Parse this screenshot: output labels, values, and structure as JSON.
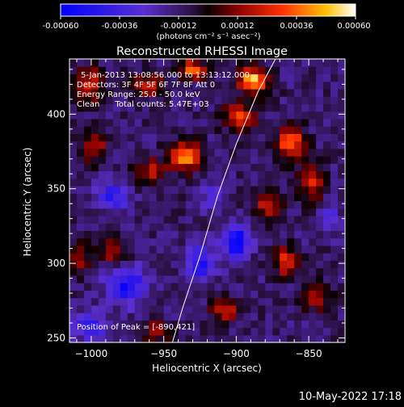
{
  "colorbar": {
    "ticks": [
      "-0.00060",
      "-0.00036",
      "-0.00012",
      "0.00012",
      "0.00036",
      "0.00060"
    ],
    "unit_text": "(photons cm⁻² s⁻¹ asec⁻²)"
  },
  "chart_data": {
    "type": "heatmap",
    "title": "Reconstructed RHESSI Image",
    "xlabel": "Heliocentric X (arcsec)",
    "ylabel": "Heliocentric Y (arcsec)",
    "xlim": [
      -1015,
      -825
    ],
    "ylim": [
      247,
      437
    ],
    "x_ticks": [
      -1000,
      -950,
      -900,
      -850
    ],
    "y_ticks": [
      250,
      300,
      350,
      400
    ],
    "color_range": [
      -0.0006,
      0.0006
    ],
    "annotations": [
      "5-Jan-2013 13:08:56.000 to 13:13:12.000",
      "Detectors: 3F 4F 5F 6F 7F 8F  Att 0",
      "Energy Range: 25.0 - 50.0 keV",
      "Clean      Total counts: 5.47E+03"
    ],
    "peak_label": "Position of Peak = [-890,421]",
    "peak": [
      -890,
      421
    ],
    "limb_arc": [
      [
        -944,
        247
      ],
      [
        -937,
        270
      ],
      [
        -925,
        305
      ],
      [
        -913,
        345
      ],
      [
        -900,
        380
      ],
      [
        -885,
        415
      ],
      [
        -873,
        437
      ]
    ],
    "regions": [
      {
        "cx": -1002,
        "cy": 420,
        "sx": 10,
        "sy": 12,
        "a": 0.00035
      },
      {
        "cx": -998,
        "cy": 378,
        "sx": 9,
        "sy": 10,
        "a": 0.0003
      },
      {
        "cx": -960,
        "cy": 420,
        "sx": 11,
        "sy": 8,
        "a": 0.00034
      },
      {
        "cx": -930,
        "cy": 430,
        "sx": 9,
        "sy": 6,
        "a": 0.0005
      },
      {
        "cx": -888,
        "cy": 423,
        "sx": 10,
        "sy": 9,
        "a": 0.0006
      },
      {
        "cx": -898,
        "cy": 398,
        "sx": 11,
        "sy": 9,
        "a": 0.00042
      },
      {
        "cx": -935,
        "cy": 372,
        "sx": 10,
        "sy": 10,
        "a": 0.00052
      },
      {
        "cx": -960,
        "cy": 362,
        "sx": 12,
        "sy": 9,
        "a": 0.0003
      },
      {
        "cx": -862,
        "cy": 380,
        "sx": 10,
        "sy": 11,
        "a": 0.00048
      },
      {
        "cx": -848,
        "cy": 355,
        "sx": 8,
        "sy": 12,
        "a": 0.00038
      },
      {
        "cx": -878,
        "cy": 338,
        "sx": 9,
        "sy": 9,
        "a": 0.00035
      },
      {
        "cx": -866,
        "cy": 302,
        "sx": 8,
        "sy": 10,
        "a": 0.0004
      },
      {
        "cx": -845,
        "cy": 278,
        "sx": 9,
        "sy": 10,
        "a": 0.0003
      },
      {
        "cx": -908,
        "cy": 268,
        "sx": 10,
        "sy": 8,
        "a": 0.00032
      },
      {
        "cx": -985,
        "cy": 310,
        "sx": 9,
        "sy": 9,
        "a": 0.0003
      },
      {
        "cx": -1008,
        "cy": 305,
        "sx": 6,
        "sy": 10,
        "a": 0.0003
      },
      {
        "cx": -955,
        "cy": 255,
        "sx": 10,
        "sy": 7,
        "a": 0.00026
      },
      {
        "cx": -985,
        "cy": 345,
        "sx": 11,
        "sy": 10,
        "a": -0.0003
      },
      {
        "cx": -975,
        "cy": 285,
        "sx": 13,
        "sy": 12,
        "a": -0.0004
      },
      {
        "cx": -1000,
        "cy": 258,
        "sx": 12,
        "sy": 9,
        "a": -0.00032
      },
      {
        "cx": -925,
        "cy": 300,
        "sx": 10,
        "sy": 12,
        "a": -0.00036
      },
      {
        "cx": -900,
        "cy": 315,
        "sx": 9,
        "sy": 10,
        "a": -0.0005
      },
      {
        "cx": -915,
        "cy": 345,
        "sx": 8,
        "sy": 9,
        "a": -0.00022
      },
      {
        "cx": -835,
        "cy": 330,
        "sx": 7,
        "sy": 9,
        "a": -0.0002
      }
    ]
  },
  "footer": {
    "timestamp": "10-May-2022 17:18"
  }
}
